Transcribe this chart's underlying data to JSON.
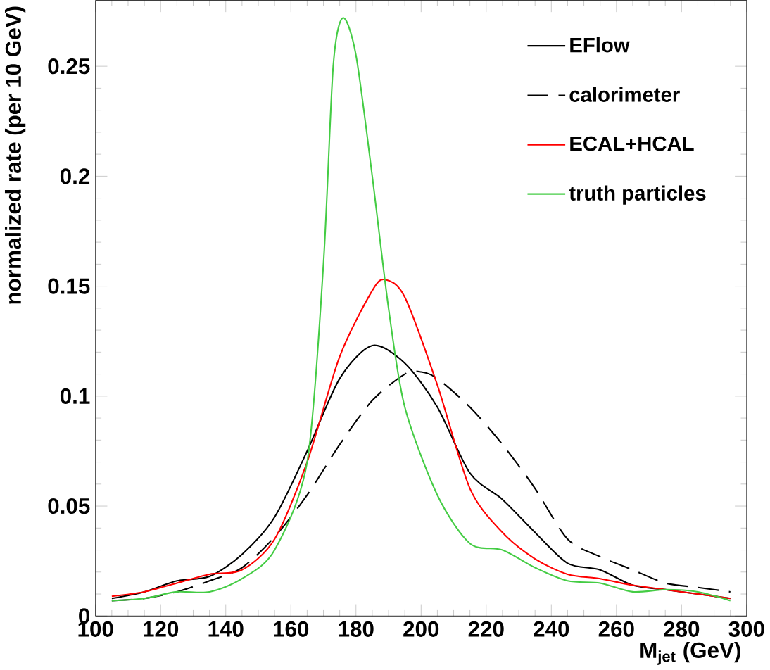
{
  "chart_data": {
    "type": "line",
    "xlabel": "M$_{jet}$ (GeV)",
    "ylabel": "normalized rate (per 10 GeV)",
    "xlim": [
      100,
      300
    ],
    "ylim": [
      0,
      0.28
    ],
    "xticks": [
      100,
      120,
      140,
      160,
      180,
      200,
      220,
      240,
      260,
      280,
      300
    ],
    "yticks": [
      0,
      0.05,
      0.1,
      0.15,
      0.2,
      0.25
    ],
    "grid": false,
    "legend": "top right",
    "series": [
      {
        "name": "EFlow",
        "color": "#000000",
        "line_style": "solid",
        "x": [
          105,
          115,
          125,
          135,
          145,
          155,
          165,
          175,
          185,
          195,
          205,
          215,
          225,
          235,
          245,
          255,
          265,
          275,
          285,
          295
        ],
        "values": [
          0.008,
          0.011,
          0.016,
          0.018,
          0.028,
          0.045,
          0.075,
          0.108,
          0.123,
          0.115,
          0.095,
          0.065,
          0.053,
          0.038,
          0.024,
          0.021,
          0.014,
          0.012,
          0.01,
          0.008
        ]
      },
      {
        "name": "calorimeter",
        "color": "#000000",
        "line_style": "dashed",
        "x": [
          105,
          115,
          125,
          135,
          145,
          155,
          165,
          175,
          185,
          195,
          200,
          205,
          215,
          225,
          235,
          245,
          255,
          265,
          275,
          285,
          295
        ],
        "values": [
          0.007,
          0.008,
          0.011,
          0.016,
          0.022,
          0.036,
          0.055,
          0.078,
          0.098,
          0.11,
          0.111,
          0.108,
          0.095,
          0.078,
          0.058,
          0.035,
          0.027,
          0.021,
          0.015,
          0.013,
          0.011
        ]
      },
      {
        "name": "ECAL+HCAL",
        "color": "#ff0000",
        "line_style": "solid",
        "x": [
          105,
          115,
          125,
          135,
          145,
          155,
          165,
          175,
          185,
          189,
          195,
          205,
          215,
          225,
          235,
          245,
          255,
          265,
          275,
          285,
          295
        ],
        "values": [
          0.009,
          0.011,
          0.015,
          0.019,
          0.021,
          0.035,
          0.07,
          0.118,
          0.148,
          0.153,
          0.145,
          0.105,
          0.058,
          0.038,
          0.026,
          0.019,
          0.017,
          0.014,
          0.012,
          0.01,
          0.008
        ]
      },
      {
        "name": "truth particles",
        "color": "#44cc44",
        "line_style": "solid",
        "x": [
          105,
          115,
          125,
          135,
          145,
          155,
          165,
          170,
          173,
          176,
          180,
          185,
          190,
          195,
          205,
          215,
          225,
          235,
          245,
          255,
          265,
          275,
          285,
          295
        ],
        "values": [
          0.007,
          0.008,
          0.011,
          0.011,
          0.017,
          0.03,
          0.07,
          0.16,
          0.25,
          0.272,
          0.255,
          0.2,
          0.14,
          0.095,
          0.055,
          0.033,
          0.03,
          0.022,
          0.016,
          0.015,
          0.011,
          0.012,
          0.011,
          0.007
        ]
      }
    ]
  }
}
